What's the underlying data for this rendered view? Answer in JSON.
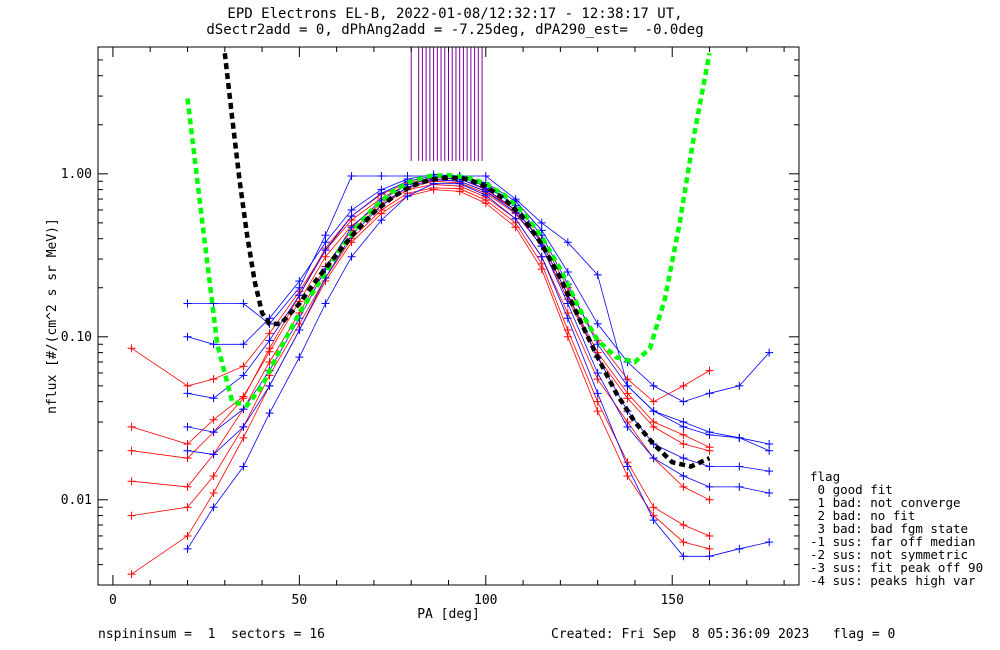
{
  "title_line1": "EPD Electrons EL-B, 2022-01-08/12:32:17 - 12:38:17 UT,",
  "title_line2": "dSectr2add = 0, dPhAng2add = -7.25deg, dPA290_est=  -0.0deg",
  "legend": {
    "title": "flag",
    "entries": [
      " 0 good fit",
      " 1 bad: not converge",
      " 2 bad: no fit",
      " 3 bad: bad fgm state",
      "-1 sus: far off median",
      "-2 sus: not symmetric",
      "-3 sus: fit peak off 90",
      "-4 sus: peaks high var"
    ]
  },
  "footer": {
    "left": "nspininsum =  1  sectors = 16",
    "right": "Created: Fri Sep  8 05:36:09 2023   flag = 0"
  },
  "colors": {
    "red_series": "#ff0000",
    "blue_series": "#0000ff",
    "green_fit": "#00ff00",
    "black_fit": "#000000",
    "spikes": "#7a00a0"
  },
  "chart_data": {
    "type": "line",
    "xlabel": "PA [deg]",
    "ylabel": "nflux [#/(cm^2 s sr MeV)]",
    "x_ticks": [
      0,
      50,
      100,
      150
    ],
    "x_tick_labels": [
      "0",
      "50",
      "100",
      "150"
    ],
    "y_scale": "log",
    "y_ticks": [
      0.01,
      0.1,
      1.0
    ],
    "y_tick_labels": [
      "0.01",
      "0.10",
      "1.00"
    ],
    "xlim": [
      -4,
      184
    ],
    "ylim": [
      0.003,
      6.0
    ],
    "grid": false,
    "legend_position": "right, below plot",
    "series": [
      {
        "color": "red",
        "pa": [
          5,
          20,
          27,
          35,
          42,
          50,
          57,
          64,
          72,
          79,
          86,
          93,
          100,
          108,
          115,
          122,
          130,
          138,
          145,
          153,
          160
        ],
        "profiles": [
          [
            0.028,
            0.022,
            0.031,
            0.043,
            0.081,
            0.165,
            0.31,
            0.48,
            0.66,
            0.82,
            0.9,
            0.88,
            0.76,
            0.57,
            0.36,
            0.17,
            0.075,
            0.042,
            0.028,
            0.022,
            0.02
          ],
          [
            0.013,
            0.012,
            0.019,
            0.036,
            0.07,
            0.14,
            0.27,
            0.45,
            0.64,
            0.8,
            0.86,
            0.84,
            0.72,
            0.53,
            0.31,
            0.14,
            0.055,
            0.03,
            0.018,
            0.012,
            0.01
          ],
          [
            0.085,
            0.05,
            0.055,
            0.066,
            0.105,
            0.19,
            0.34,
            0.52,
            0.71,
            0.86,
            0.93,
            0.9,
            0.78,
            0.6,
            0.39,
            0.2,
            0.095,
            0.055,
            0.04,
            0.05,
            0.062
          ],
          [
            0.008,
            0.009,
            0.014,
            0.028,
            0.058,
            0.12,
            0.23,
            0.4,
            0.6,
            0.76,
            0.82,
            0.81,
            0.69,
            0.5,
            0.28,
            0.11,
            0.04,
            0.017,
            0.009,
            0.007,
            0.006
          ],
          [
            0.02,
            0.018,
            0.026,
            0.042,
            0.085,
            0.18,
            0.35,
            0.55,
            0.75,
            0.88,
            0.95,
            0.93,
            0.8,
            0.6,
            0.38,
            0.18,
            0.08,
            0.045,
            0.03,
            0.025,
            0.021
          ],
          [
            0.0035,
            0.006,
            0.011,
            0.024,
            0.05,
            0.11,
            0.22,
            0.38,
            0.57,
            0.73,
            0.8,
            0.78,
            0.66,
            0.47,
            0.26,
            0.1,
            0.035,
            0.014,
            0.008,
            0.0055,
            0.005
          ]
        ]
      },
      {
        "color": "blue",
        "pa": [
          20,
          27,
          35,
          42,
          50,
          57,
          64,
          72,
          79,
          86,
          93,
          100,
          108,
          115,
          122,
          130,
          138,
          145,
          153,
          160,
          168,
          176
        ],
        "profiles": [
          [
            0.16,
            0.16,
            0.16,
            0.12,
            0.2,
            0.42,
            0.97,
            0.97,
            0.97,
            0.97,
            0.97,
            0.97,
            0.7,
            0.5,
            0.38,
            0.24,
            0.05,
            0.035,
            0.03,
            0.026,
            0.024,
            0.02
          ],
          [
            0.045,
            0.042,
            0.058,
            0.095,
            0.18,
            0.34,
            0.55,
            0.76,
            0.9,
            0.97,
            0.95,
            0.84,
            0.64,
            0.42,
            0.21,
            0.09,
            0.05,
            0.035,
            0.028,
            0.025,
            0.024,
            0.022
          ],
          [
            0.02,
            0.019,
            0.028,
            0.05,
            0.11,
            0.23,
            0.42,
            0.64,
            0.83,
            0.92,
            0.9,
            0.78,
            0.58,
            0.36,
            0.16,
            0.06,
            0.028,
            0.018,
            0.014,
            0.012,
            0.012,
            0.011
          ],
          [
            0.1,
            0.09,
            0.09,
            0.13,
            0.22,
            0.38,
            0.6,
            0.8,
            0.93,
            0.99,
            0.97,
            0.88,
            0.68,
            0.45,
            0.25,
            0.12,
            0.07,
            0.05,
            0.04,
            0.045,
            0.05,
            0.08
          ],
          [
            0.005,
            0.009,
            0.016,
            0.034,
            0.075,
            0.16,
            0.31,
            0.52,
            0.73,
            0.87,
            0.87,
            0.74,
            0.53,
            0.31,
            0.13,
            0.045,
            0.016,
            0.0075,
            0.0045,
            0.0045,
            0.005,
            0.0055
          ],
          [
            0.028,
            0.026,
            0.036,
            0.062,
            0.13,
            0.26,
            0.47,
            0.69,
            0.86,
            0.95,
            0.93,
            0.81,
            0.6,
            0.38,
            0.18,
            0.075,
            0.035,
            0.022,
            0.018,
            0.016,
            0.016,
            0.015
          ]
        ]
      },
      {
        "name": "",
        "color": "green",
        "style": "dashed",
        "x": [
          20,
          24,
          28,
          32,
          36,
          40,
          45,
          50,
          55,
          60,
          65,
          70,
          75,
          80,
          85,
          90,
          95,
          100,
          105,
          110,
          115,
          120,
          125,
          130,
          135,
          140,
          144,
          148,
          152,
          156,
          160
        ],
        "y": [
          2.9,
          0.5,
          0.09,
          0.04,
          0.038,
          0.05,
          0.085,
          0.14,
          0.21,
          0.32,
          0.46,
          0.62,
          0.78,
          0.9,
          0.97,
          0.98,
          0.95,
          0.87,
          0.74,
          0.58,
          0.41,
          0.26,
          0.15,
          0.095,
          0.075,
          0.07,
          0.085,
          0.17,
          0.5,
          1.8,
          5.5
        ]
      },
      {
        "name": "",
        "color": "black",
        "style": "dashed",
        "x": [
          30,
          32,
          34,
          36,
          38,
          40,
          42,
          45,
          50,
          55,
          60,
          65,
          70,
          75,
          80,
          85,
          90,
          95,
          100,
          105,
          110,
          115,
          120,
          125,
          130,
          135,
          140,
          145,
          150,
          155,
          160
        ],
        "y": [
          5.5,
          2.2,
          0.9,
          0.42,
          0.22,
          0.14,
          0.12,
          0.12,
          0.16,
          0.23,
          0.32,
          0.44,
          0.58,
          0.72,
          0.84,
          0.92,
          0.95,
          0.93,
          0.84,
          0.7,
          0.54,
          0.37,
          0.23,
          0.13,
          0.075,
          0.045,
          0.03,
          0.022,
          0.017,
          0.016,
          0.018
        ]
      }
    ],
    "spikes_pa": [
      80,
      82,
      83,
      84,
      85,
      86,
      87,
      88,
      89,
      90,
      91,
      92,
      93,
      94,
      95,
      96,
      97,
      98,
      99
    ],
    "spikes_yrange": [
      1.2,
      6.0
    ]
  }
}
